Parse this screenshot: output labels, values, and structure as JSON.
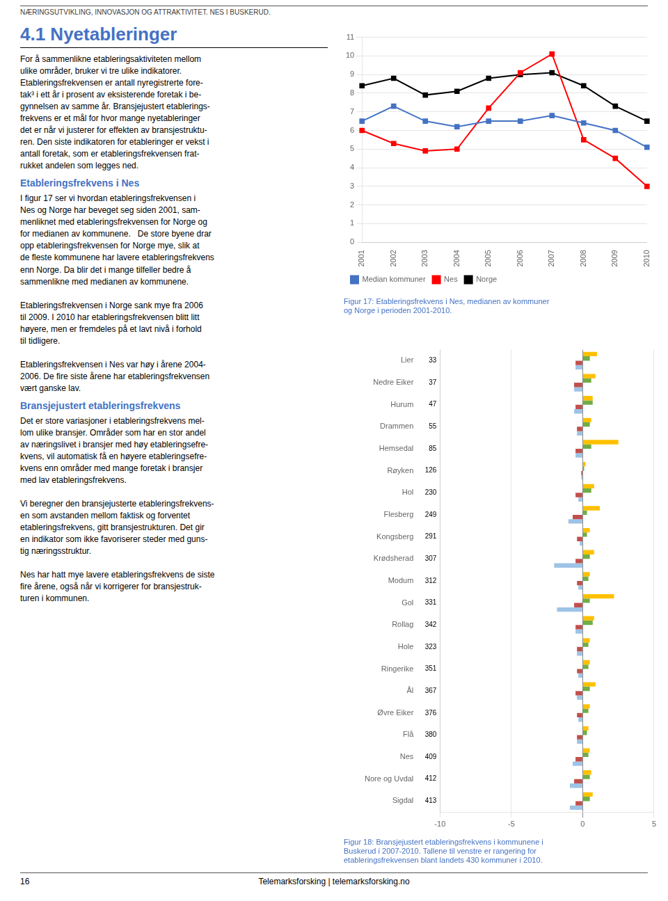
{
  "page": {
    "header_text": "NÆRINGSUTVIKLING, INNOVASJON OG ATTRAKTIVITET. NES I BUSKERUD.",
    "section_title": "4.1  Nyetableringer",
    "title_color": "#4472c4",
    "subheading1": "Etableringsfrekvens i Nes",
    "subheading2": "Bransjejustert etableringsfrekvens",
    "subheading_color": "#4472c4",
    "body1": "For å sammenlikne etableringsaktiviteten mellom\nulike områder, bruker vi tre ulike indikatorer.\nEtableringsfrekvensen er antall nyregistrerte fore-\ntak³ i ett år i prosent av eksisterende foretak i be-\ngynnelsen av samme år. Bransjejustert etablerings-\nfrekvens er et mål for hvor mange nyetableringer\ndet er når vi justerer for effekten av bransjestruktu-\nren. Den siste indikatoren for etableringer er vekst i\nantall foretak, som er etableringsfrekvensen frat-\nrukket andelen som legges ned.",
    "body2": "I figur 17 ser vi hvordan etableringsfrekvensen i\nNes og Norge har beveget seg siden 2001, sam-\nmenliknet med etableringsfrekvensen for Norge og\nfor medianen av kommunene.   De store byene drar\nopp etableringsfrekvensen for Norge mye, slik at\nde fleste kommunene har lavere etableringsfrekvens\nenn Norge. Da blir det i mange tilfeller bedre å\nsammenlikne med medianen av kommunene.\n\nEtableringsfrekvensen i Norge sank mye fra 2006\ntil 2009. I 2010 har etableringsfrekvensen blitt litt\nhøyere, men er fremdeles på et lavt nivå i forhold\ntil tidligere.\n\nEtableringsfrekvensen i Nes var høy i årene 2004-\n2006. De fire siste årene har etableringsfrekvensen\nvært ganske lav.",
    "body3": "Det er store variasjoner i etableringsfrekvens mel-\nlom ulike bransjer. Områder som har en stor andel\nav næringslivet i bransjer med høy etableringsefre-\nkvens, vil automatisk få en høyere etableringsefre-\nkvens enn områder med mange foretak i bransjer\nmed lav etableringsfrekvens.\n\nVi beregner den bransjejusterte etableringsfrekvens-\nen som avstanden mellom faktisk og forventet\netableringsfrekvens, gitt bransjestrukturen. Det gir\nen indikator som ikke favoriserer steder med guns-\ntig næringsstruktur.\n\nNes har hatt mye lavere etableringsfrekvens de siste\nfire årene, også når vi korrigerer for bransjestruk-\nturen i kommunen.",
    "footer_num": "16",
    "footer_text": "Telemarksforsking  |  telemarksforsking.no"
  },
  "chart_data": [
    {
      "type": "line",
      "title": "Figur 17: Etableringsfrekvens i Nes, medianen av kommuner\nog Norge i perioden 2001-2010.",
      "categories": [
        "2001",
        "2002",
        "2003",
        "2004",
        "2005",
        "2006",
        "2007",
        "2008",
        "2009",
        "2010"
      ],
      "series": [
        {
          "name": "Median kommuner",
          "color": "#4472c4",
          "marker": "square",
          "values": [
            6.5,
            7.3,
            6.5,
            6.2,
            6.5,
            6.5,
            6.8,
            6.4,
            6.0,
            5.1
          ]
        },
        {
          "name": "Nes",
          "color": "#ff0000",
          "marker": "square",
          "values": [
            6.0,
            5.3,
            4.9,
            5.0,
            7.2,
            9.1,
            10.1,
            5.5,
            4.5,
            3.0
          ]
        },
        {
          "name": "Norge",
          "color": "#000000",
          "marker": "square",
          "values": [
            8.4,
            8.8,
            7.9,
            8.1,
            8.8,
            9.0,
            9.1,
            8.4,
            7.3,
            6.5
          ]
        }
      ],
      "ylim": [
        0,
        11
      ],
      "yticks": [
        0,
        1,
        2,
        3,
        4,
        5,
        6,
        7,
        8,
        9,
        10,
        11
      ],
      "grid": true,
      "legend": "lower left"
    },
    {
      "type": "bar",
      "orientation": "horizontal",
      "title": "Figur 18: Bransjejustert etableringsfrekvens i kommunene i\nBuskerud i 2007-2010. Tallene til venstre er rangering for\netableringsfrekvensen blant landets 430 kommuner i 2010.",
      "categories": [
        "Lier",
        "Nedre Eiker",
        "Hurum",
        "Drammen",
        "Hemsedal",
        "Røyken",
        "Hol",
        "Flesberg",
        "Kongsberg",
        "Krødsherad",
        "Modum",
        "Gol",
        "Rollag",
        "Hole",
        "Ringerike",
        "Ål",
        "Øvre Eiker",
        "Flå",
        "Nes",
        "Nore og Uvdal",
        "Sigdal"
      ],
      "ranks": [
        "33",
        "37",
        "47",
        "55",
        "85",
        "126",
        "230",
        "249",
        "291",
        "307",
        "312",
        "331",
        "342",
        "323",
        "351",
        "367",
        "376",
        "380",
        "409",
        "412",
        "413"
      ],
      "series": [
        {
          "color": "#ffc000",
          "values": [
            1.0,
            0.9,
            0.7,
            0.6,
            2.5,
            0.2,
            0.8,
            1.2,
            0.5,
            0.8,
            0.5,
            2.2,
            0.8,
            0.5,
            0.5,
            0.9,
            0.5,
            0.4,
            0.5,
            0.6,
            0.7
          ]
        },
        {
          "color": "#70ad47",
          "values": [
            0.5,
            0.6,
            0.7,
            0.5,
            0.6,
            0.1,
            0.6,
            0.3,
            0.3,
            0.5,
            0.4,
            0.5,
            0.7,
            0.4,
            0.4,
            0.5,
            0.4,
            0.3,
            0.4,
            0.5,
            0.5
          ]
        },
        {
          "color": "#c0504d",
          "values": [
            -0.5,
            -0.6,
            -0.5,
            -0.4,
            -0.5,
            -0.1,
            -0.5,
            -0.7,
            -0.4,
            -0.5,
            -0.4,
            -0.6,
            -0.5,
            -0.4,
            -0.4,
            -0.5,
            -0.4,
            -0.4,
            -0.5,
            -0.6,
            -0.5
          ]
        },
        {
          "color": "#9dc3e6",
          "values": [
            -0.5,
            -0.6,
            -0.6,
            -0.4,
            -0.5,
            -0.1,
            -0.3,
            -1.0,
            -0.2,
            -2.0,
            -0.3,
            -1.8,
            -0.5,
            -0.4,
            -0.3,
            -0.4,
            -0.3,
            -0.4,
            -0.7,
            -0.9,
            -0.9
          ]
        }
      ],
      "xlim": [
        -10,
        5
      ],
      "xticks": [
        -10,
        -5,
        0,
        5
      ],
      "grid": true
    }
  ]
}
